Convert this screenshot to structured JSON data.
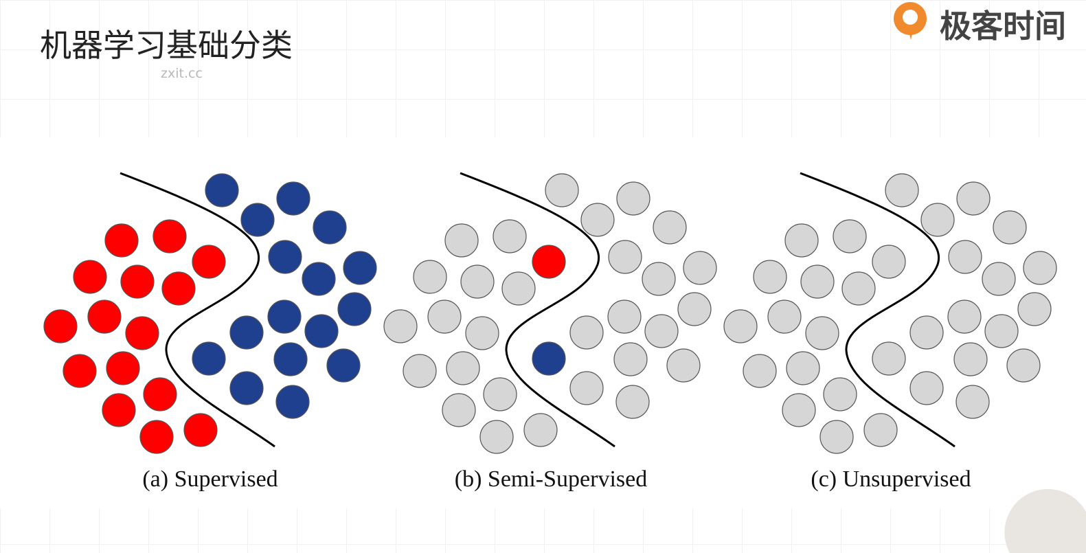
{
  "header": {
    "title": "机器学习基础分类",
    "watermark": "zxit.cc",
    "logo": "极客时间"
  },
  "panels": [
    {
      "caption": "(a) Supervised"
    },
    {
      "caption": "(b) Semi-Supervised"
    },
    {
      "caption": "(c) Unsupervised"
    }
  ]
}
